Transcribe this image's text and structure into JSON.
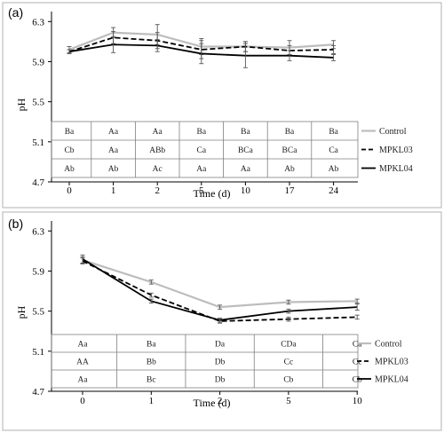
{
  "chart_data": [
    {
      "panel_label": "(a)",
      "type": "line",
      "ylabel": "pH",
      "xlabel": "Time (d)",
      "categories": [
        "0",
        "1",
        "2",
        "5",
        "10",
        "17",
        "24"
      ],
      "yticks": [
        "4.7",
        "5.1",
        "5.5",
        "5.9",
        "6.3"
      ],
      "ylim": [
        4.7,
        6.4
      ],
      "series": [
        {
          "name": "Control",
          "style": "solid-gray",
          "color": "#bdbdbd",
          "values": [
            6.02,
            6.19,
            6.17,
            6.05,
            6.05,
            6.04,
            6.07
          ],
          "errors": [
            0.03,
            0.05,
            0.1,
            0.08,
            0.05,
            0.07,
            0.04
          ]
        },
        {
          "name": "MPKL03",
          "style": "dashed",
          "color": "#000000",
          "values": [
            6.0,
            6.14,
            6.11,
            6.02,
            6.05,
            6.01,
            6.02
          ],
          "errors": [
            0.02,
            0.06,
            0.08,
            0.09,
            0.05,
            0.05,
            0.04
          ]
        },
        {
          "name": "MPKL04",
          "style": "solid-black",
          "color": "#000000",
          "values": [
            6.0,
            6.07,
            6.06,
            5.98,
            5.96,
            5.96,
            5.94
          ],
          "errors": [
            0.02,
            0.08,
            0.06,
            0.1,
            0.12,
            0.05,
            0.03
          ]
        }
      ],
      "table": [
        [
          "Ba",
          "Aa",
          "Aa",
          "Ba",
          "Ba",
          "Ba",
          "Ba"
        ],
        [
          "Cb",
          "Aa",
          "ABb",
          "Ca",
          "BCa",
          "BCa",
          "Ca"
        ],
        [
          "Ab",
          "Ab",
          "Ac",
          "Aa",
          "Aa",
          "Ab",
          "Ab"
        ]
      ]
    },
    {
      "panel_label": "(b)",
      "type": "line",
      "ylabel": "pH",
      "xlabel": "Time (d)",
      "categories": [
        "0",
        "1",
        "2",
        "5",
        "10"
      ],
      "yticks": [
        "4.7",
        "5.1",
        "5.5",
        "5.9",
        "6.3"
      ],
      "ylim": [
        4.7,
        6.4
      ],
      "series": [
        {
          "name": "Control",
          "style": "solid-gray",
          "color": "#bdbdbd",
          "values": [
            6.01,
            5.79,
            5.54,
            5.59,
            5.6
          ],
          "errors": [
            0.03,
            0.02,
            0.02,
            0.02,
            0.02
          ]
        },
        {
          "name": "MPKL03",
          "style": "dashed",
          "color": "#000000",
          "values": [
            6.0,
            5.66,
            5.4,
            5.42,
            5.44
          ],
          "errors": [
            0.03,
            0.02,
            0.02,
            0.02,
            0.02
          ]
        },
        {
          "name": "MPKL04",
          "style": "solid-black",
          "color": "#000000",
          "values": [
            6.02,
            5.6,
            5.41,
            5.5,
            5.54
          ],
          "errors": [
            0.04,
            0.02,
            0.02,
            0.02,
            0.03
          ]
        }
      ],
      "table": [
        [
          "Aa",
          "Ba",
          "Da",
          "CDa",
          "Ca"
        ],
        [
          "AA",
          "Bb",
          "Db",
          "Cc",
          "Cc"
        ],
        [
          "Aa",
          "Bc",
          "Db",
          "Cb",
          "Cb"
        ]
      ]
    }
  ]
}
